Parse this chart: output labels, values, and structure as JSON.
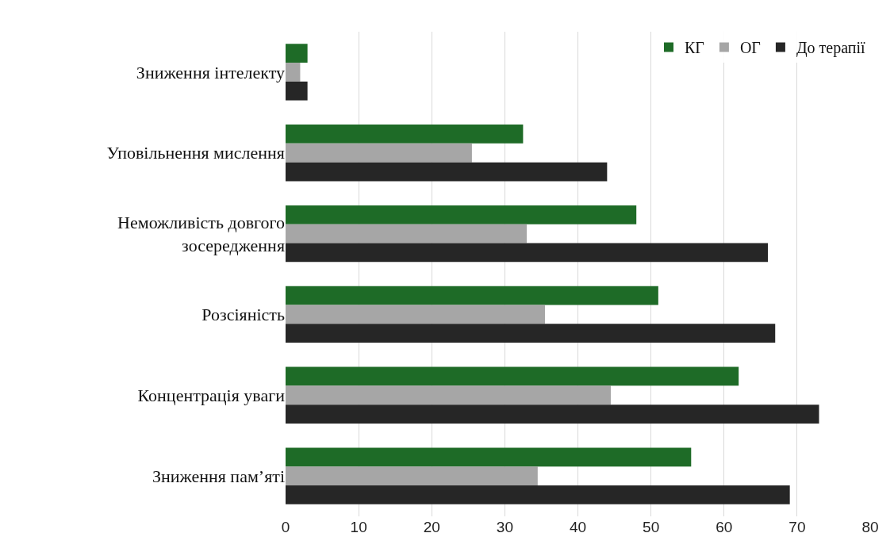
{
  "chart_data": {
    "type": "bar",
    "orientation": "horizontal",
    "categories": [
      "Зниження інтелекту",
      "Уповільнення мислення",
      "Неможливість довгого\nзосередження",
      "Розсіяність",
      "Концентрація уваги",
      "Зниження пам’яті"
    ],
    "series": [
      {
        "name": "КГ",
        "color": "#1e6b27",
        "values": [
          3,
          32.5,
          48,
          51,
          62,
          55.5
        ]
      },
      {
        "name": "ОГ",
        "color": "#a6a6a6",
        "values": [
          2,
          25.5,
          33,
          35.5,
          44.5,
          34.5
        ]
      },
      {
        "name": "До терапії",
        "color": "#262626",
        "values": [
          3,
          44,
          66,
          67,
          73,
          69
        ]
      }
    ],
    "xlim": [
      0,
      80
    ],
    "xticks": [
      0,
      10,
      20,
      30,
      40,
      50,
      60,
      70,
      80
    ],
    "grid": "x",
    "legend": "top right"
  }
}
